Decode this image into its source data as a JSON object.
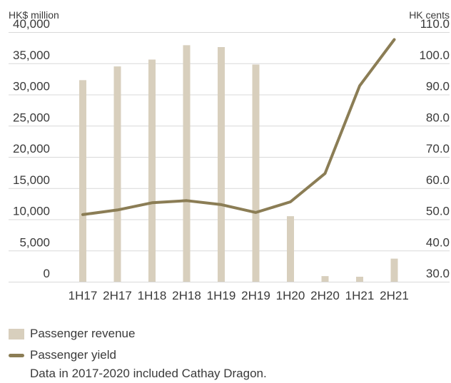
{
  "chart_data": {
    "type": "bar+line",
    "categories": [
      "1H17",
      "2H17",
      "1H18",
      "2H18",
      "1H19",
      "2H19",
      "1H20",
      "2H20",
      "1H21",
      "2H21"
    ],
    "left_axis": {
      "unit": "HK$ million",
      "ticks": [
        "40,000",
        "35,000",
        "30,000",
        "25,000",
        "20,000",
        "15,000",
        "10,000",
        "5,000",
        "0"
      ],
      "range": [
        0,
        40000
      ]
    },
    "right_axis": {
      "unit": "HK cents",
      "ticks": [
        "110.0",
        "100.0",
        "90.0",
        "80.0",
        "70.0",
        "60.0",
        "50.0",
        "40.0",
        "30.0"
      ],
      "range": [
        30,
        110
      ]
    },
    "series": [
      {
        "name": "Passenger revenue",
        "type": "bar",
        "axis": "left",
        "values": [
          32300,
          34500,
          35600,
          37900,
          37600,
          34800,
          10500,
          900,
          800,
          3700
        ]
      },
      {
        "name": "Passenger yield",
        "type": "line",
        "axis": "right",
        "values": [
          51.5,
          53.0,
          55.3,
          56.0,
          54.7,
          52.2,
          55.6,
          64.7,
          92.8,
          107.6
        ]
      }
    ],
    "colors": {
      "bar": "#d8cfbd",
      "line": "#8b7d55",
      "gridline": "#d9d9d9"
    },
    "legend_position": "bottom-left",
    "grid": true
  },
  "footnote": "Data in 2017-2020 included Cathay Dragon."
}
